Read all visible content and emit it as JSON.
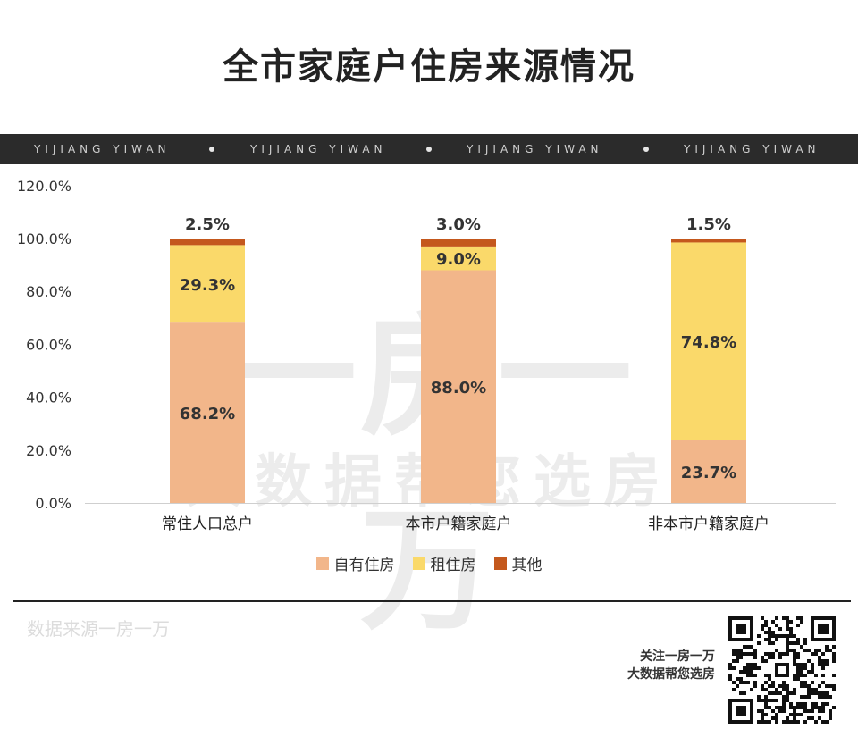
{
  "title": "全市家庭户住房来源情况",
  "watermark_band": {
    "items": [
      "YIJIANG YIWAN",
      "YIJIANG YIWAN",
      "YIJIANG YIWAN",
      "YIJIANG YIWAN"
    ]
  },
  "watermark": {
    "big": "一房一万",
    "small": "大数据帮您选房"
  },
  "source_text": "数据来源一房一万",
  "promo": {
    "line1": "关注一房一万",
    "line2": "大数据帮您选房"
  },
  "colors": {
    "owned": "#f2b68a",
    "rented": "#fad96a",
    "other": "#c4581d"
  },
  "chart_data": {
    "type": "bar",
    "stacked": true,
    "categories": [
      "常住人口总户",
      "本市户籍家庭户",
      "非本市户籍家庭户"
    ],
    "series": [
      {
        "name": "自有住房",
        "values": [
          68.2,
          88.0,
          23.7
        ],
        "labels": [
          "68.2%",
          "88.0%",
          "23.7%"
        ]
      },
      {
        "name": "租住房",
        "values": [
          29.3,
          9.0,
          74.8
        ],
        "labels": [
          "29.3%",
          "9.0%",
          "74.8%"
        ]
      },
      {
        "name": "其他",
        "values": [
          2.5,
          3.0,
          1.5
        ],
        "labels": [
          "2.5%",
          "3.0%",
          "1.5%"
        ]
      }
    ],
    "yticks": [
      "0.0%",
      "20.0%",
      "40.0%",
      "60.0%",
      "80.0%",
      "100.0%",
      "120.0%"
    ],
    "ylim": [
      0,
      120
    ],
    "grid": false,
    "legend_position": "bottom"
  }
}
